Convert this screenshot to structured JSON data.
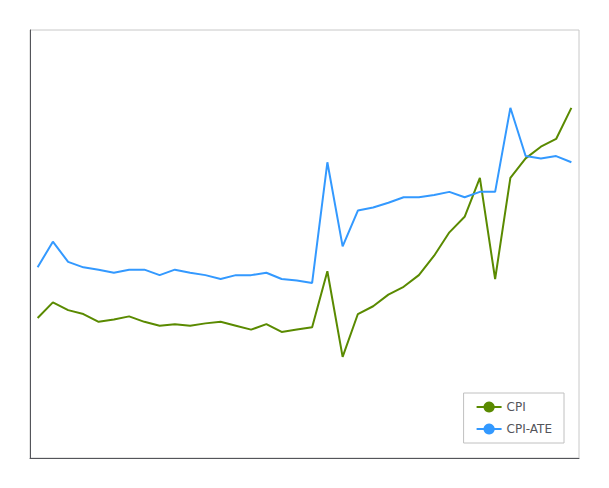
{
  "chart_data": {
    "type": "line",
    "categories": [
      null,
      null,
      null,
      null,
      null,
      null,
      null,
      null,
      null,
      null,
      null,
      null,
      null,
      null,
      null,
      null,
      null,
      null,
      null,
      null,
      null,
      null,
      null,
      null,
      null,
      null,
      null,
      null,
      null,
      null,
      null,
      null,
      null,
      null,
      null,
      null
    ],
    "series": [
      {
        "name": "CPI",
        "color": "#5a8a00",
        "values": [
          1.8,
          2.0,
          1.9,
          1.85,
          1.75,
          1.78,
          1.82,
          1.75,
          1.7,
          1.72,
          1.7,
          1.73,
          1.75,
          1.7,
          1.65,
          1.72,
          1.62,
          1.65,
          1.68,
          2.4,
          1.3,
          1.85,
          1.95,
          2.1,
          2.2,
          2.35,
          2.6,
          2.9,
          3.1,
          3.6,
          2.3,
          3.6,
          3.85,
          4.0,
          4.1,
          4.5
        ]
      },
      {
        "name": "CPI-ATE",
        "color": "#3399ff",
        "values": [
          2.45,
          2.78,
          2.52,
          2.45,
          2.42,
          2.38,
          2.42,
          2.42,
          2.35,
          2.42,
          2.38,
          2.35,
          2.3,
          2.35,
          2.35,
          2.38,
          2.3,
          2.28,
          2.25,
          3.8,
          2.72,
          3.18,
          3.22,
          3.28,
          3.35,
          3.35,
          3.38,
          3.42,
          3.35,
          3.42,
          3.42,
          4.5,
          3.88,
          3.85,
          3.88,
          3.8
        ]
      }
    ],
    "ylim": [
      0,
      5.5
    ],
    "tick_labels": false,
    "grid": false,
    "legend": "lower right"
  }
}
